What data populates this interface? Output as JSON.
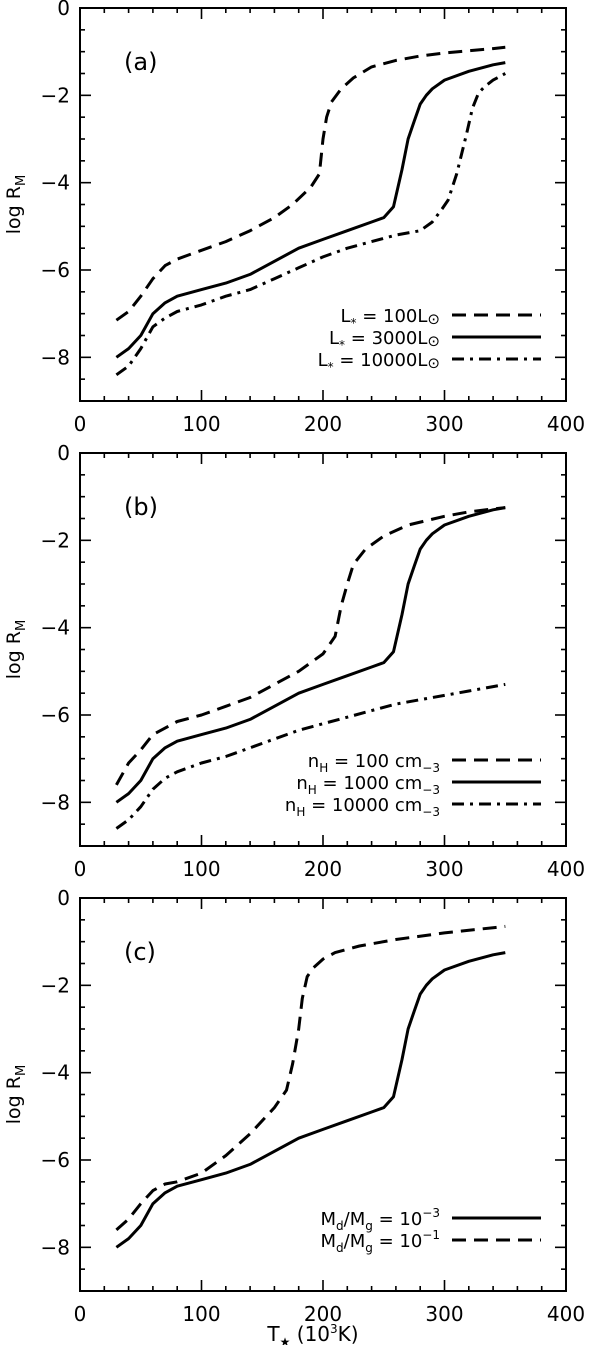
{
  "chart_data": [
    {
      "type": "line",
      "panel_label": "(a)",
      "xlabel": "",
      "ylabel": "log R",
      "ylabel_sub": "M",
      "xlim": [
        0,
        400
      ],
      "ylim": [
        -9,
        0
      ],
      "x_ticks": [
        "0",
        "100",
        "200",
        "300",
        "400"
      ],
      "y_ticks": [
        "−8",
        "−6",
        "−4",
        "−2",
        "0"
      ],
      "legend": "bottom-right",
      "series": [
        {
          "style": "dashed",
          "label_parts": [
            "L",
            "*",
            " = 100L",
            "⊙"
          ],
          "x": [
            30,
            40,
            50,
            60,
            70,
            80,
            100,
            120,
            140,
            160,
            175,
            190,
            197,
            200,
            203,
            207,
            215,
            225,
            240,
            260,
            280,
            300,
            320,
            340,
            350
          ],
          "y": [
            -7.15,
            -6.95,
            -6.6,
            -6.2,
            -5.9,
            -5.75,
            -5.55,
            -5.35,
            -5.1,
            -4.8,
            -4.5,
            -4.1,
            -3.8,
            -3.0,
            -2.5,
            -2.15,
            -1.85,
            -1.6,
            -1.35,
            -1.2,
            -1.1,
            -1.03,
            -0.98,
            -0.93,
            -0.9
          ]
        },
        {
          "style": "solid",
          "label_parts": [
            "L",
            "*",
            " = 3000L",
            "⊙"
          ],
          "x": [
            30,
            40,
            50,
            60,
            70,
            80,
            100,
            120,
            140,
            160,
            180,
            200,
            220,
            240,
            250,
            258,
            265,
            270,
            275,
            280,
            285,
            290,
            300,
            320,
            340,
            350
          ],
          "y": [
            -8.0,
            -7.8,
            -7.5,
            -7.0,
            -6.75,
            -6.6,
            -6.45,
            -6.3,
            -6.1,
            -5.8,
            -5.5,
            -5.3,
            -5.1,
            -4.9,
            -4.8,
            -4.55,
            -3.7,
            -3.0,
            -2.6,
            -2.2,
            -2.0,
            -1.85,
            -1.65,
            -1.45,
            -1.3,
            -1.25
          ]
        },
        {
          "style": "dashdot",
          "label_parts": [
            "L",
            "*",
            " = 10000L",
            "⊙"
          ],
          "x": [
            30,
            40,
            50,
            60,
            70,
            80,
            100,
            120,
            140,
            160,
            180,
            200,
            220,
            240,
            260,
            280,
            290,
            298,
            303,
            310,
            318,
            323,
            328,
            333,
            340,
            350
          ],
          "y": [
            -8.4,
            -8.2,
            -7.8,
            -7.3,
            -7.1,
            -6.95,
            -6.8,
            -6.6,
            -6.45,
            -6.2,
            -5.95,
            -5.7,
            -5.5,
            -5.35,
            -5.2,
            -5.1,
            -4.9,
            -4.6,
            -4.4,
            -3.8,
            -2.9,
            -2.3,
            -1.95,
            -1.8,
            -1.65,
            -1.5
          ]
        }
      ]
    },
    {
      "type": "line",
      "panel_label": "(b)",
      "xlabel": "",
      "ylabel": "log R",
      "ylabel_sub": "M",
      "xlim": [
        0,
        400
      ],
      "ylim": [
        -9,
        0
      ],
      "x_ticks": [
        "0",
        "100",
        "200",
        "300",
        "400"
      ],
      "y_ticks": [
        "−8",
        "−6",
        "−4",
        "−2",
        "0"
      ],
      "legend": "bottom-right",
      "series": [
        {
          "style": "dashed",
          "label_parts": [
            "n",
            "H",
            " = 100 cm",
            "−3"
          ],
          "x": [
            30,
            40,
            50,
            60,
            70,
            80,
            100,
            120,
            140,
            160,
            180,
            200,
            210,
            215,
            220,
            225,
            235,
            250,
            270,
            300,
            320,
            340,
            350
          ],
          "y": [
            -7.6,
            -7.1,
            -6.8,
            -6.45,
            -6.3,
            -6.15,
            -6.0,
            -5.8,
            -5.6,
            -5.3,
            -5.0,
            -4.6,
            -4.2,
            -3.5,
            -3.0,
            -2.55,
            -2.2,
            -1.9,
            -1.65,
            -1.45,
            -1.35,
            -1.28,
            -1.25
          ]
        },
        {
          "style": "solid",
          "label_parts": [
            "n",
            "H",
            " = 1000 cm",
            "−3"
          ],
          "x": [
            30,
            40,
            50,
            60,
            70,
            80,
            100,
            120,
            140,
            160,
            180,
            200,
            220,
            240,
            250,
            258,
            265,
            270,
            275,
            280,
            285,
            290,
            300,
            320,
            340,
            350
          ],
          "y": [
            -8.0,
            -7.8,
            -7.5,
            -7.0,
            -6.75,
            -6.6,
            -6.45,
            -6.3,
            -6.1,
            -5.8,
            -5.5,
            -5.3,
            -5.1,
            -4.9,
            -4.8,
            -4.55,
            -3.7,
            -3.0,
            -2.6,
            -2.2,
            -2.0,
            -1.85,
            -1.65,
            -1.45,
            -1.3,
            -1.25
          ]
        },
        {
          "style": "dashdot",
          "label_parts": [
            "n",
            "H",
            " = 10000 cm",
            "−3"
          ],
          "x": [
            30,
            40,
            50,
            60,
            70,
            80,
            100,
            120,
            140,
            160,
            180,
            200,
            220,
            240,
            260,
            280,
            300,
            320,
            340,
            350
          ],
          "y": [
            -8.6,
            -8.4,
            -8.1,
            -7.7,
            -7.45,
            -7.3,
            -7.1,
            -6.95,
            -6.75,
            -6.55,
            -6.35,
            -6.2,
            -6.05,
            -5.9,
            -5.75,
            -5.65,
            -5.55,
            -5.45,
            -5.35,
            -5.3
          ]
        }
      ]
    },
    {
      "type": "line",
      "panel_label": "(c)",
      "xlabel": "T",
      "xlabel_sub": "★",
      "xlabel_rest_parts": [
        " (10",
        "3",
        "K)"
      ],
      "ylabel": "log R",
      "ylabel_sub": "M",
      "xlim": [
        0,
        400
      ],
      "ylim": [
        -9,
        0
      ],
      "x_ticks": [
        "0",
        "100",
        "200",
        "300",
        "400"
      ],
      "y_ticks": [
        "−8",
        "−6",
        "−4",
        "−2",
        "0"
      ],
      "legend": "bottom-right",
      "series": [
        {
          "style": "solid",
          "label_parts": [
            "M",
            "d",
            "/M",
            "g",
            " = 10",
            "−3"
          ],
          "x": [
            30,
            40,
            50,
            60,
            70,
            80,
            100,
            120,
            140,
            160,
            180,
            200,
            220,
            240,
            250,
            258,
            265,
            270,
            275,
            280,
            285,
            290,
            300,
            320,
            340,
            350
          ],
          "y": [
            -8.0,
            -7.8,
            -7.5,
            -7.0,
            -6.75,
            -6.6,
            -6.45,
            -6.3,
            -6.1,
            -5.8,
            -5.5,
            -5.3,
            -5.1,
            -4.9,
            -4.8,
            -4.55,
            -3.7,
            -3.0,
            -2.6,
            -2.2,
            -2.0,
            -1.85,
            -1.65,
            -1.45,
            -1.3,
            -1.25
          ]
        },
        {
          "style": "dashed",
          "label_parts": [
            "M",
            "d",
            "/M",
            "g",
            " = 10",
            "−1"
          ],
          "x": [
            30,
            40,
            50,
            60,
            70,
            80,
            100,
            120,
            140,
            160,
            170,
            175,
            180,
            183,
            187,
            192,
            200,
            210,
            230,
            260,
            300,
            340,
            350
          ],
          "y": [
            -7.6,
            -7.35,
            -7.0,
            -6.7,
            -6.55,
            -6.5,
            -6.3,
            -5.9,
            -5.4,
            -4.8,
            -4.4,
            -3.8,
            -3.0,
            -2.3,
            -1.8,
            -1.6,
            -1.4,
            -1.25,
            -1.1,
            -0.95,
            -0.8,
            -0.68,
            -0.65
          ]
        }
      ]
    }
  ]
}
